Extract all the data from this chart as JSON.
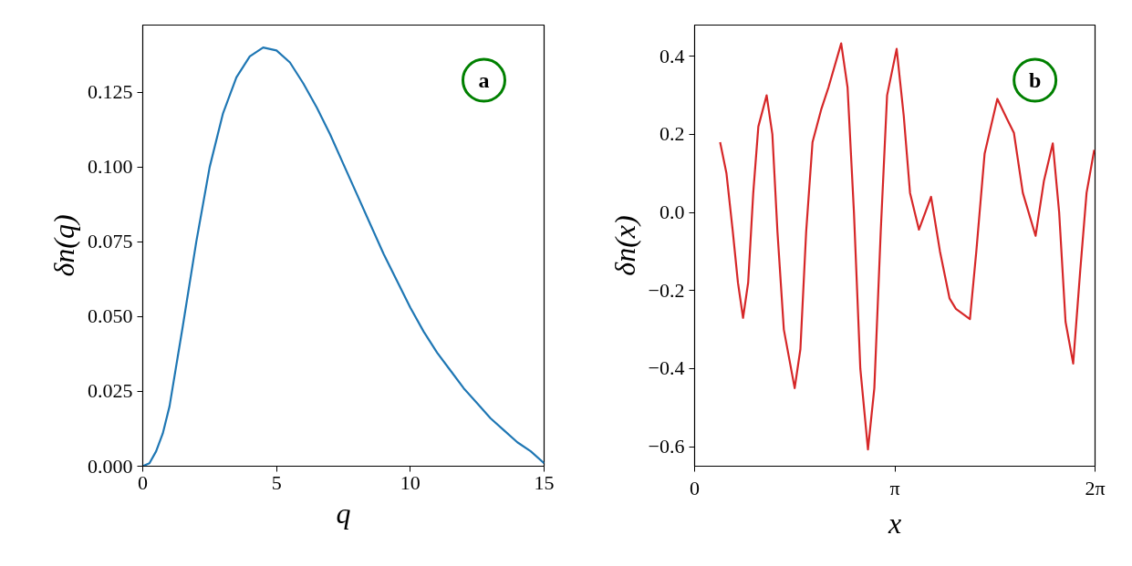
{
  "chart_data": [
    {
      "type": "line",
      "xlabel": "q",
      "ylabel": "δn(q)",
      "annotations": [
        "a"
      ],
      "xlim": [
        0,
        15
      ],
      "ylim": [
        0,
        0.1475
      ],
      "xticks": [
        0,
        5,
        10,
        15
      ],
      "yticks": [
        {
          "value": 0,
          "label": "0.000"
        },
        {
          "value": 0.025,
          "label": "0.025"
        },
        {
          "value": 0.05,
          "label": "0.050"
        },
        {
          "value": 0.075,
          "label": "0.075"
        },
        {
          "value": 0.1,
          "label": "0.100"
        },
        {
          "value": 0.125,
          "label": "0.125"
        }
      ],
      "series": [
        {
          "color": "#1f77b4",
          "x": [
            0,
            0.25,
            0.5,
            0.75,
            1,
            1.5,
            2,
            2.5,
            3,
            3.5,
            4,
            4.5,
            5,
            5.5,
            6,
            6.5,
            7,
            7.5,
            8,
            8.5,
            9,
            9.5,
            10,
            10.5,
            11,
            11.5,
            12,
            12.5,
            13,
            13.5,
            14,
            14.5,
            15
          ],
          "values": [
            0,
            0.001,
            0.005,
            0.011,
            0.02,
            0.047,
            0.075,
            0.1,
            0.118,
            0.13,
            0.137,
            0.14,
            0.139,
            0.135,
            0.128,
            0.12,
            0.111,
            0.101,
            0.091,
            0.081,
            0.071,
            0.062,
            0.053,
            0.045,
            0.038,
            0.032,
            0.026,
            0.021,
            0.016,
            0.012,
            0.008,
            0.005,
            0.001
          ]
        }
      ]
    },
    {
      "type": "line",
      "xlabel": "x",
      "ylabel": "δn(x)",
      "annotations": [
        "b"
      ],
      "xlim": [
        0,
        6.2832
      ],
      "ylim": [
        -0.65,
        0.48
      ],
      "xticks": [
        0,
        {
          "value": 3.1416,
          "label": "π"
        },
        {
          "value": 6.2832,
          "label": "2π"
        }
      ],
      "yticks": [
        {
          "value": -0.6,
          "label": "−0.6"
        },
        {
          "value": -0.4,
          "label": "−0.4"
        },
        {
          "value": -0.2,
          "label": "−0.2"
        },
        {
          "value": 0,
          "label": "0.0"
        },
        {
          "value": 0.2,
          "label": "0.2"
        },
        {
          "value": 0.4,
          "label": "0.4"
        }
      ],
      "series": [
        {
          "color": "#d62728",
          "x": [
            0.4,
            0.5,
            0.6,
            0.68,
            0.76,
            0.84,
            0.92,
            1.0,
            1.13,
            1.22,
            1.3,
            1.4,
            1.57,
            1.66,
            1.75,
            1.85,
            1.985,
            2.1,
            2.3,
            2.4,
            2.5,
            2.6,
            2.72,
            2.82,
            2.92,
            3.02,
            3.17,
            3.28,
            3.38,
            3.52,
            3.71,
            3.85,
            4.0,
            4.1,
            4.32,
            4.42,
            4.55,
            4.75,
            4.9,
            5.01,
            5.15,
            5.35,
            5.48,
            5.62,
            5.72,
            5.82,
            5.94,
            6.05,
            6.15,
            6.27
          ],
          "values": [
            0.18,
            0.1,
            -0.05,
            -0.18,
            -0.27,
            -0.18,
            0.05,
            0.22,
            0.3,
            0.2,
            -0.05,
            -0.3,
            -0.45,
            -0.35,
            -0.05,
            0.18,
            0.263,
            0.32,
            0.433,
            0.32,
            0.0,
            -0.4,
            -0.607,
            -0.45,
            -0.05,
            0.3,
            0.419,
            0.25,
            0.05,
            -0.044,
            0.04,
            -0.1,
            -0.22,
            -0.247,
            -0.273,
            -0.1,
            0.15,
            0.291,
            0.24,
            0.204,
            0.05,
            -0.06,
            0.08,
            0.177,
            0.0,
            -0.28,
            -0.387,
            -0.15,
            0.05,
            0.16
          ]
        }
      ]
    }
  ]
}
